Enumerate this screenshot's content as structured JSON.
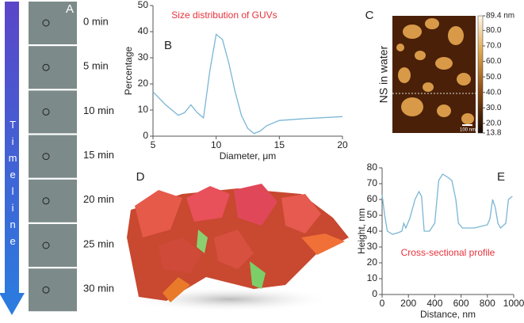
{
  "timeline": {
    "label": "Timeline",
    "panel": "A",
    "times": [
      "0 min",
      "5 min",
      "10 min",
      "15 min",
      "20 min",
      "25 min",
      "30 min"
    ]
  },
  "chart_data": [
    {
      "type": "line",
      "panel": "B",
      "title": "Size distribution of GUVs",
      "x_label": "Diameter, μm",
      "y_label": "Percentage",
      "color": "#7ab6d4",
      "x": [
        5,
        6,
        7,
        7.5,
        8,
        8.5,
        9,
        9.5,
        10,
        10.5,
        11,
        11.5,
        12,
        12.5,
        13,
        13.5,
        14,
        15,
        17,
        20
      ],
      "values": [
        17,
        12,
        8,
        9,
        12,
        9,
        7,
        25,
        39,
        37,
        28,
        17,
        8,
        3,
        1,
        2,
        4,
        6,
        6.7,
        7.5
      ],
      "xlim": [
        5,
        20
      ],
      "xticks": [
        5,
        10,
        15,
        20
      ],
      "ylim": [
        0,
        50
      ],
      "yticks": [
        0,
        10,
        20,
        30,
        40,
        50
      ]
    },
    {
      "type": "line",
      "panel": "E",
      "title": "Cross-sectional profile",
      "x_label": "Distance, nm",
      "y_label": "Height, nm",
      "color": "#7ab6d4",
      "x": [
        0,
        20,
        40,
        80,
        120,
        150,
        165,
        180,
        210,
        250,
        280,
        300,
        320,
        360,
        400,
        430,
        460,
        500,
        530,
        560,
        580,
        610,
        700,
        800,
        820,
        840,
        860,
        880,
        900,
        940,
        960,
        990
      ],
      "values": [
        63,
        50,
        40,
        38,
        39,
        40,
        45,
        42,
        48,
        60,
        65,
        62,
        40,
        40,
        45,
        72,
        76,
        74,
        72,
        60,
        45,
        42,
        42,
        44,
        48,
        60,
        55,
        45,
        42,
        45,
        60,
        62
      ],
      "xlim": [
        0,
        1000
      ],
      "xticks": [
        0,
        200,
        400,
        600,
        800,
        1000
      ],
      "ylim": [
        0,
        80
      ],
      "yticks": [
        0,
        10,
        20,
        30,
        40,
        50,
        60,
        70,
        80
      ]
    }
  ],
  "panel_c": {
    "panel": "C",
    "label": "NS in water",
    "scale_bar": "100 nm",
    "colorbar": {
      "range": [
        13.8,
        89.4
      ],
      "ticks": [
        {
          "value": 89.4,
          "label": "89.4 nm"
        },
        {
          "value": 80,
          "label": "80.0"
        },
        {
          "value": 70,
          "label": "70.0"
        },
        {
          "value": 60,
          "label": "60.0"
        },
        {
          "value": 50,
          "label": "50.0"
        },
        {
          "value": 40,
          "label": "40.0"
        },
        {
          "value": 30,
          "label": "30.0"
        },
        {
          "value": 20,
          "label": "20.0"
        },
        {
          "value": 13.8,
          "label": "13.8"
        }
      ]
    }
  },
  "panel_d": {
    "panel": "D"
  }
}
